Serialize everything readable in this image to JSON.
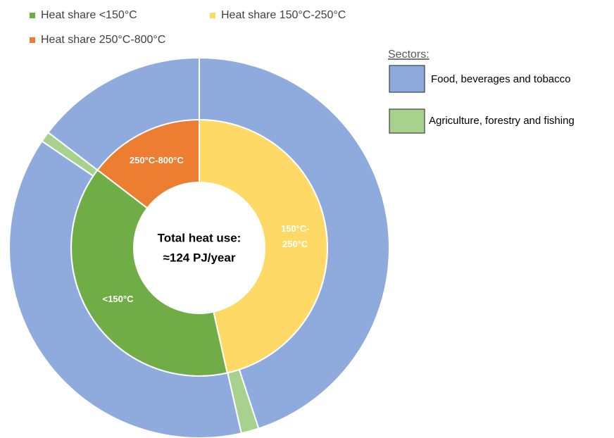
{
  "chart_data": {
    "type": "nested-donut",
    "legend": [
      {
        "name": "Heat share <150°C",
        "color": "#70ad47"
      },
      {
        "name": "Heat share 150°C-250°C",
        "color": "#ffd966"
      },
      {
        "name": "Heat share 250°C-800°C",
        "color": "#ed7d31"
      }
    ],
    "inner": {
      "labels": [
        "150°C-\n250°C",
        "<150°C",
        "250°C-800°C"
      ],
      "values": [
        46.5,
        38.9,
        14.6
      ],
      "colors": [
        "#ffd966",
        "#70ad47",
        "#ed7d31"
      ]
    },
    "sector_title": "Sectors:",
    "series": [
      {
        "name": "Food, beverages and tobacco",
        "color": "#8faadc",
        "values": [
          44.9,
          38,
          14.6
        ]
      },
      {
        "name": "Agriculture, forestry and fishing",
        "color": "#a9d18e",
        "values": [
          1.5,
          0.9,
          0
        ]
      }
    ],
    "center_text": [
      "Total heat  use:",
      "≈124 PJ/year"
    ]
  }
}
